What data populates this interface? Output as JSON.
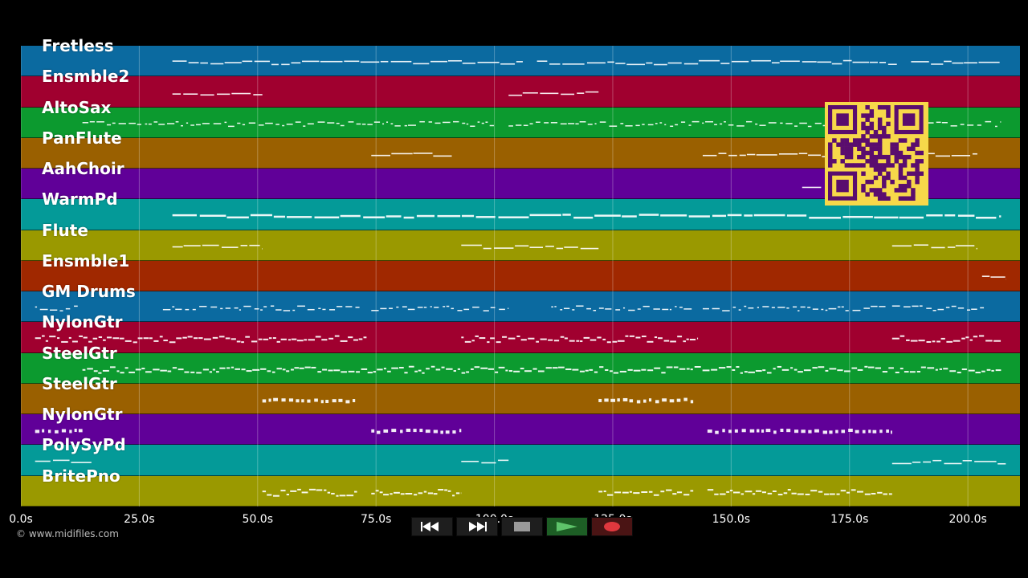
{
  "timeline": {
    "tracks": [
      {
        "name": "Fretless",
        "color": "#0b6aa0"
      },
      {
        "name": "Ensmble2",
        "color": "#a0002f"
      },
      {
        "name": "AltoSax",
        "color": "#0c9a2f"
      },
      {
        "name": "PanFlute",
        "color": "#9a6000"
      },
      {
        "name": "AahChoir",
        "color": "#600098"
      },
      {
        "name": "WarmPd",
        "color": "#049a98"
      },
      {
        "name": "Flute",
        "color": "#9a9900"
      },
      {
        "name": "Ensmble1",
        "color": "#a02800"
      },
      {
        "name": "GM Drums",
        "color": "#0b6aa0"
      },
      {
        "name": "NylonGtr",
        "color": "#a0002f"
      },
      {
        "name": "SteelGtr",
        "color": "#0c9a2f"
      },
      {
        "name": "SteelGtr",
        "color": "#9a6000"
      },
      {
        "name": "NylonGtr",
        "color": "#600098"
      },
      {
        "name": "PolySyPd",
        "color": "#049a98"
      },
      {
        "name": "BritePno",
        "color": "#9a9900"
      }
    ],
    "time_axis": {
      "max_seconds": 211,
      "ticks": [
        {
          "t": 0,
          "label": "0.0s"
        },
        {
          "t": 25,
          "label": "25.0s"
        },
        {
          "t": 50,
          "label": "50.0s"
        },
        {
          "t": 75,
          "label": "75.0s"
        },
        {
          "t": 100,
          "label": "100.0s"
        },
        {
          "t": 125,
          "label": "125.0s"
        },
        {
          "t": 150,
          "label": "150.0s"
        },
        {
          "t": 175,
          "label": "175.0s"
        },
        {
          "t": 200,
          "label": "200.0s"
        }
      ]
    },
    "note_segments": [
      {
        "track": 0,
        "ranges": [
          [
            32,
            106
          ],
          [
            109,
            185
          ],
          [
            188,
            207
          ]
        ],
        "style": "line"
      },
      {
        "track": 1,
        "ranges": [
          [
            32,
            51
          ],
          [
            103,
            122
          ]
        ],
        "style": "line"
      },
      {
        "track": 2,
        "ranges": [
          [
            13,
            100
          ],
          [
            103,
            207
          ]
        ],
        "style": "dotted"
      },
      {
        "track": 3,
        "ranges": [
          [
            74,
            91
          ],
          [
            144,
            202
          ]
        ],
        "style": "line"
      },
      {
        "track": 4,
        "ranges": [
          [
            165,
            169
          ]
        ],
        "style": "line"
      },
      {
        "track": 5,
        "ranges": [
          [
            32,
            207
          ]
        ],
        "style": "thick"
      },
      {
        "track": 6,
        "ranges": [
          [
            32,
            51
          ],
          [
            93,
            122
          ],
          [
            184,
            202
          ]
        ],
        "style": "line"
      },
      {
        "track": 7,
        "ranges": [
          [
            203,
            208
          ]
        ],
        "style": "line"
      },
      {
        "track": 8,
        "ranges": [
          [
            3,
            12
          ],
          [
            30,
            72
          ],
          [
            74,
            103
          ],
          [
            112,
            142
          ],
          [
            144,
            183
          ],
          [
            184,
            204
          ]
        ],
        "style": "dotted"
      },
      {
        "track": 9,
        "ranges": [
          [
            3,
            73
          ],
          [
            93,
            143
          ],
          [
            184,
            207
          ]
        ],
        "style": "dense"
      },
      {
        "track": 10,
        "ranges": [
          [
            13,
            207
          ]
        ],
        "style": "dense"
      },
      {
        "track": 11,
        "ranges": [
          [
            51,
            71
          ],
          [
            122,
            142
          ]
        ],
        "style": "blocks"
      },
      {
        "track": 12,
        "ranges": [
          [
            3,
            13
          ],
          [
            74,
            93
          ],
          [
            145,
            184
          ]
        ],
        "style": "blocks"
      },
      {
        "track": 13,
        "ranges": [
          [
            3,
            15
          ],
          [
            93,
            103
          ],
          [
            184,
            208
          ]
        ],
        "style": "line"
      },
      {
        "track": 14,
        "ranges": [
          [
            51,
            71
          ],
          [
            74,
            93
          ],
          [
            122,
            142
          ],
          [
            145,
            184
          ]
        ],
        "style": "dense"
      }
    ]
  },
  "copyright": "© www.midifiles.com",
  "transport": {
    "buttons": [
      {
        "name": "rewind",
        "icon": "rewind-icon",
        "color": "#ffffff"
      },
      {
        "name": "fast-forward",
        "icon": "fast-forward-icon",
        "color": "#ffffff"
      },
      {
        "name": "stop",
        "icon": "stop-icon",
        "color": "#9a9a9a"
      },
      {
        "name": "play",
        "icon": "play-icon",
        "color": "#4caf50"
      },
      {
        "name": "record",
        "icon": "record-icon",
        "color": "#e0383e"
      }
    ]
  },
  "qr_code": {
    "color": "#f7d84a",
    "dark": "#5a0d6e"
  }
}
